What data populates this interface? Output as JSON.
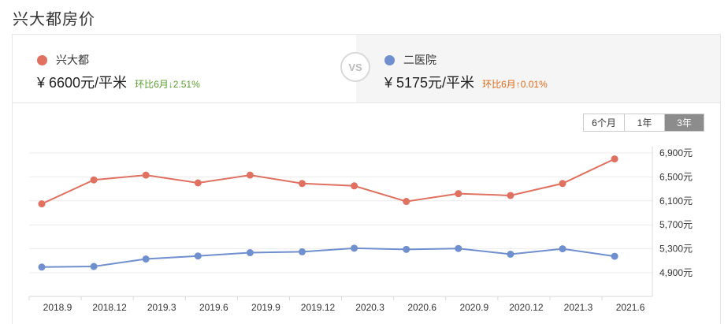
{
  "page": {
    "title": "兴大都房价"
  },
  "compare": {
    "left": {
      "name": "兴大都",
      "price": "¥ 6600元/平米",
      "change": "环比6月↓2.51%",
      "dot_color": "#e07060",
      "change_color": "#5a9e2f"
    },
    "vs_label": "VS",
    "right": {
      "name": "二医院",
      "price": "¥ 5175元/平米",
      "change": "环比6月↑0.01%",
      "dot_color": "#6f8fcf",
      "change_color": "#e06a1a"
    }
  },
  "range_tabs": [
    {
      "label": "6个月",
      "active": false
    },
    {
      "label": "1年",
      "active": false
    },
    {
      "label": "3年",
      "active": true
    }
  ],
  "chart_data": {
    "type": "line",
    "x": [
      "2018.9",
      "2018.12",
      "2019.3",
      "2019.6",
      "2019.9",
      "2019.12",
      "2020.3",
      "2020.6",
      "2020.9",
      "2020.12",
      "2021.3",
      "2021.6"
    ],
    "y_ticks": [
      4900,
      5300,
      5700,
      6100,
      6500,
      6900
    ],
    "y_tick_labels": [
      "4,900元",
      "5,300元",
      "5,700元",
      "6,100元",
      "6,500元",
      "6,900元"
    ],
    "ylim": [
      4700,
      7000
    ],
    "grid": true,
    "series": [
      {
        "name": "兴大都",
        "color": "#e07060",
        "values": [
          6050,
          6450,
          6530,
          6400,
          6530,
          6390,
          6350,
          6090,
          6220,
          6190,
          6390,
          6800
        ]
      },
      {
        "name": "二医院",
        "color": "#6f8fcf",
        "values": [
          4995,
          5005,
          5130,
          5180,
          5235,
          5250,
          5310,
          5290,
          5305,
          5210,
          5300,
          5175
        ]
      }
    ]
  }
}
